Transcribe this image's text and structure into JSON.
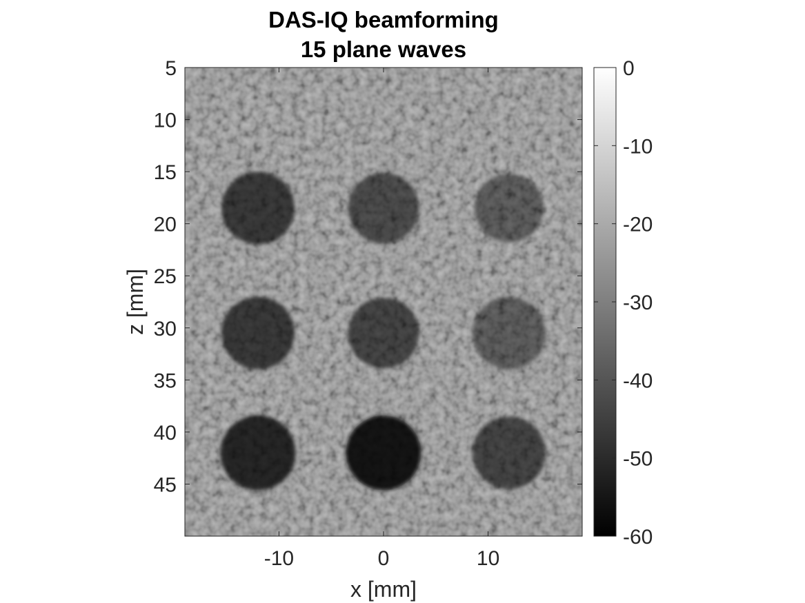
{
  "chart_data": {
    "type": "heatmap",
    "title": [
      "DAS-IQ beamforming",
      "15 plane waves"
    ],
    "xlabel": "x [mm]",
    "ylabel": "z [mm]",
    "xlim": [
      -19,
      19
    ],
    "ylim": [
      5,
      50
    ],
    "y_direction": "reversed",
    "x_ticks": [
      {
        "value": -10,
        "label": "-10"
      },
      {
        "value": 0,
        "label": "0"
      },
      {
        "value": 10,
        "label": "10"
      }
    ],
    "y_ticks": [
      {
        "value": 5,
        "label": "5"
      },
      {
        "value": 10,
        "label": "10"
      },
      {
        "value": 15,
        "label": "15"
      },
      {
        "value": 20,
        "label": "20"
      },
      {
        "value": 25,
        "label": "25"
      },
      {
        "value": 30,
        "label": "30"
      },
      {
        "value": 35,
        "label": "35"
      },
      {
        "value": 40,
        "label": "40"
      },
      {
        "value": 45,
        "label": "45"
      }
    ],
    "colorbar": {
      "colormap": "gray",
      "range": [
        -60,
        0
      ],
      "ticks": [
        {
          "value": 0,
          "label": "0"
        },
        {
          "value": -10,
          "label": "-10"
        },
        {
          "value": -20,
          "label": "-20"
        },
        {
          "value": -30,
          "label": "-30"
        },
        {
          "value": -40,
          "label": "-40"
        },
        {
          "value": -50,
          "label": "-50"
        },
        {
          "value": -60,
          "label": "-60"
        }
      ]
    },
    "background_level_db": -15,
    "cysts": [
      {
        "x": -12,
        "z": 18.5,
        "radius": 3.5,
        "level_db": -45
      },
      {
        "x": 0,
        "z": 18.5,
        "radius": 3.4,
        "level_db": -40
      },
      {
        "x": 12,
        "z": 18.5,
        "radius": 3.3,
        "level_db": -35
      },
      {
        "x": -12,
        "z": 30.5,
        "radius": 3.5,
        "level_db": -45
      },
      {
        "x": 0,
        "z": 30.5,
        "radius": 3.4,
        "level_db": -42
      },
      {
        "x": 12,
        "z": 30.5,
        "radius": 3.5,
        "level_db": -35
      },
      {
        "x": -12,
        "z": 42,
        "radius": 3.6,
        "level_db": -50
      },
      {
        "x": 0,
        "z": 42,
        "radius": 3.6,
        "level_db": -55
      },
      {
        "x": 12,
        "z": 42,
        "radius": 3.5,
        "level_db": -42
      }
    ]
  }
}
